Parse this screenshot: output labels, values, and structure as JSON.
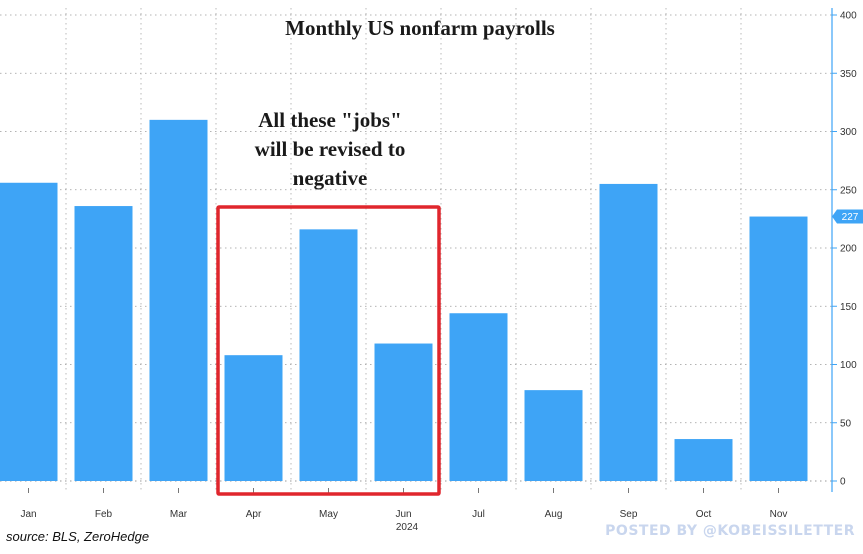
{
  "chart_data": {
    "type": "bar",
    "title": "Monthly US nonfarm payrolls",
    "categories": [
      "Jan",
      "Feb",
      "Mar",
      "Apr",
      "May",
      "Jun",
      "Jul",
      "Aug",
      "Sep",
      "Oct",
      "Nov"
    ],
    "x_year_label": "2024",
    "values": [
      256,
      236,
      310,
      108,
      216,
      118,
      144,
      78,
      255,
      36,
      227
    ],
    "ylim": [
      -6,
      405
    ],
    "y_ticks": [
      0,
      50,
      100,
      150,
      200,
      250,
      300,
      350,
      400
    ],
    "y_axis_side": "right",
    "grid": true,
    "last_value_label": "227",
    "annotation": {
      "lines": [
        "All these \"jobs\"",
        "will be revised to",
        "negative"
      ],
      "highlighted_categories": [
        "Apr",
        "May",
        "Jun"
      ]
    },
    "bar_color": "#3ea4f6",
    "highlight_color": "#e0262d",
    "source": "source: BLS, ZeroHedge",
    "posted_by": "POSTED BY @KOBEISSILETTER"
  }
}
